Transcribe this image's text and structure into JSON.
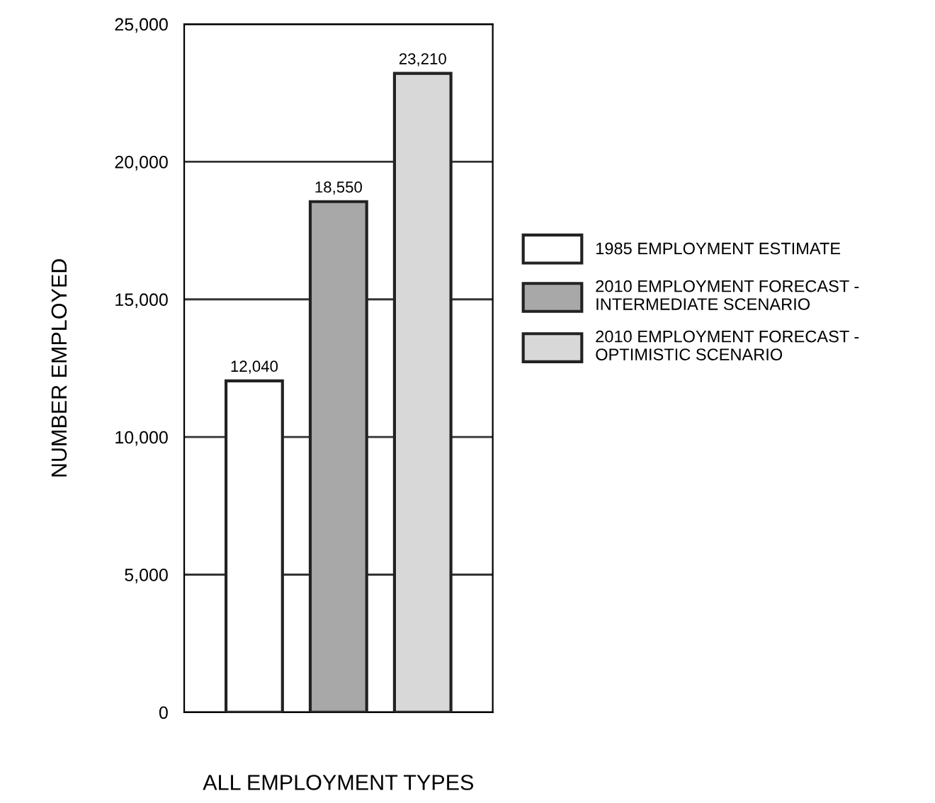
{
  "chart_data": {
    "type": "bar",
    "xlabel": "ALL EMPLOYMENT TYPES",
    "ylabel": "NUMBER EMPLOYED",
    "categories": [
      null
    ],
    "series": [
      {
        "name": "1985 EMPLOYMENT ESTIMATE",
        "color": "#ffffff",
        "values": [
          12040
        ],
        "value_labels": [
          "12,040"
        ]
      },
      {
        "name": "2010 EMPLOYMENT FORECAST -\nINTERMEDIATE SCENARIO",
        "color": "#a8a8a8",
        "values": [
          18550
        ],
        "value_labels": [
          "18,550"
        ]
      },
      {
        "name": "2010 EMPLOYMENT FORECAST -\nOPTIMISTIC SCENARIO",
        "color": "#d8d8d8",
        "values": [
          23210
        ],
        "value_labels": [
          "23,210"
        ]
      }
    ],
    "ylim": [
      0,
      25000
    ],
    "yticks": [
      {
        "value": 0,
        "label": "0"
      },
      {
        "value": 5000,
        "label": "5,000"
      },
      {
        "value": 10000,
        "label": "10,000"
      },
      {
        "value": 15000,
        "label": "15,000"
      },
      {
        "value": 20000,
        "label": "20,000"
      },
      {
        "value": 25000,
        "label": "25,000"
      }
    ],
    "grid": "y",
    "legend": "right"
  }
}
